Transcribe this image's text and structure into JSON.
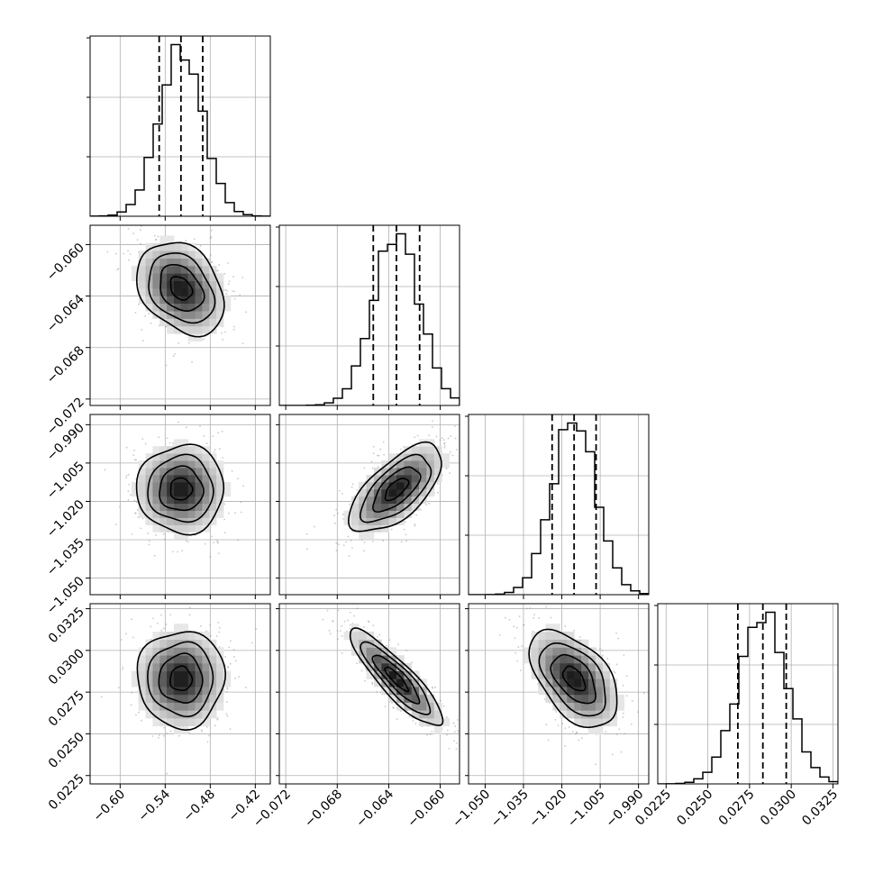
{
  "chart_data": {
    "type": "corner",
    "title": "",
    "parameters": [
      {
        "range": [
          -0.64,
          -0.4
        ],
        "ticks": [
          -0.6,
          -0.54,
          -0.48,
          -0.42
        ],
        "tick_labels": [
          "−0.60",
          "−0.54",
          "−0.48",
          "−0.42"
        ],
        "quantiles": [
          -0.548,
          -0.519,
          -0.49
        ],
        "mean": -0.519,
        "std": 0.029
      },
      {
        "range": [
          -0.0725,
          -0.0585
        ],
        "ticks": [
          -0.072,
          -0.068,
          -0.064,
          -0.06
        ],
        "tick_labels": [
          "−0.072",
          "−0.068",
          "−0.064",
          "−0.060"
        ],
        "quantiles": [
          -0.0652,
          -0.0634,
          -0.0616
        ],
        "mean": -0.0634,
        "std": 0.0018
      },
      {
        "range": [
          -1.0565,
          -0.986
        ],
        "ticks": [
          -1.05,
          -1.035,
          -1.02,
          -1.005,
          -0.99
        ],
        "tick_labels": [
          "−1.050",
          "−1.035",
          "−1.020",
          "−1.005",
          "−0.990"
        ],
        "quantiles": [
          -1.0238,
          -1.0152,
          -1.0066
        ],
        "mean": -1.0152,
        "std": 0.0086
      },
      {
        "range": [
          0.022,
          0.0328
        ],
        "ticks": [
          0.0225,
          0.025,
          0.0275,
          0.03,
          0.0325
        ],
        "tick_labels": [
          "0.0225",
          "0.0250",
          "0.0275",
          "0.0300",
          "0.0325"
        ],
        "quantiles": [
          0.0268,
          0.0283,
          0.0297
        ],
        "mean": 0.0283,
        "std": 0.00145
      }
    ],
    "correlations": [
      {
        "pair": [
          0,
          1
        ],
        "rho": -0.3
      },
      {
        "pair": [
          0,
          2
        ],
        "rho": 0.0
      },
      {
        "pair": [
          1,
          2
        ],
        "rho": 0.65
      },
      {
        "pair": [
          0,
          3
        ],
        "rho": 0.0
      },
      {
        "pair": [
          1,
          3
        ],
        "rho": -0.88
      },
      {
        "pair": [
          2,
          3
        ],
        "rho": -0.5
      }
    ],
    "histogram_bins": 20,
    "grid": true,
    "colors": {
      "hist": "#000000",
      "contour": "#000000",
      "points": "#888888",
      "grid": "#b0b0b0"
    }
  }
}
